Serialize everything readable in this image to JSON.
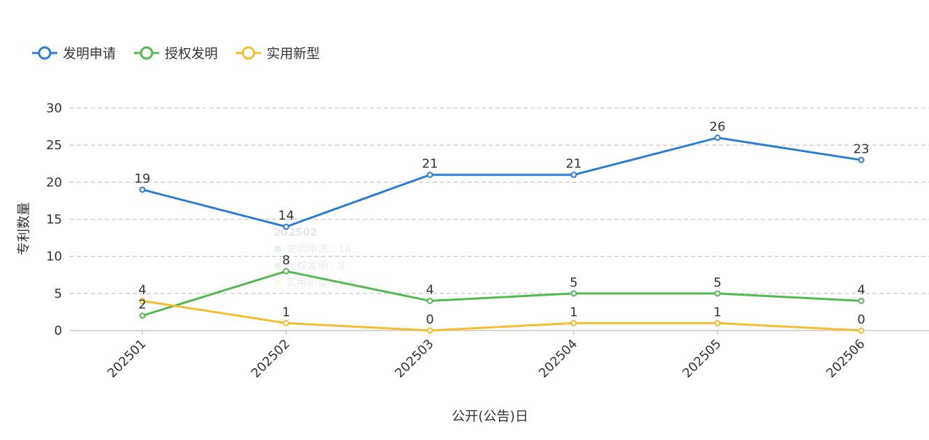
{
  "chart_data": {
    "type": "line",
    "categories": [
      "202501",
      "202502",
      "202503",
      "202504",
      "202505",
      "202506"
    ],
    "series": [
      {
        "name": "发明申请",
        "values": [
          19,
          14,
          21,
          21,
          26,
          23
        ],
        "color": "#2b7bd4"
      },
      {
        "name": "授权发明",
        "values": [
          2,
          8,
          4,
          5,
          5,
          4
        ],
        "color": "#52b850"
      },
      {
        "name": "实用新型",
        "values": [
          4,
          1,
          0,
          1,
          1,
          0
        ],
        "color": "#f6bc2d"
      }
    ],
    "xlabel": "公开(公告)日",
    "ylabel": "专利数量",
    "ylim": [
      0,
      30
    ],
    "yticks": [
      0,
      5,
      10,
      15,
      20,
      25,
      30
    ],
    "grid": true,
    "legend": "top-left",
    "tooltip": {
      "title": "202502",
      "lines": [
        "发明申请 : 14",
        "授权发明 : 8",
        "实用新型 : 1"
      ]
    }
  }
}
